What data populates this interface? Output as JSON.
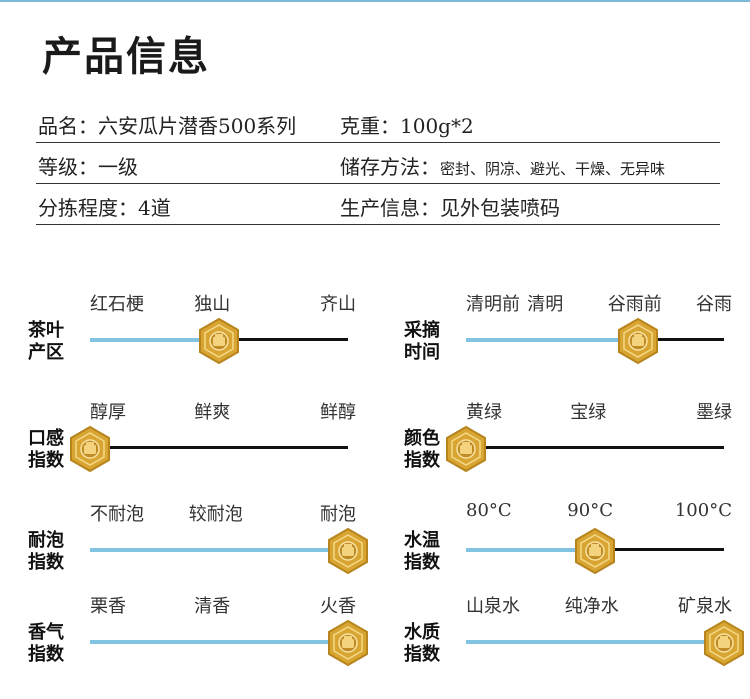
{
  "title": "产品信息",
  "info": [
    {
      "left": {
        "label": "品名：",
        "value": "六安瓜片潜香500系列"
      },
      "right": {
        "label": "克重：",
        "value": "100g*2",
        "small": false
      }
    },
    {
      "left": {
        "label": "等级：",
        "value": "一级"
      },
      "right": {
        "label": "储存方法：",
        "value": "密封、阴凉、避光、干燥、无异味",
        "small": true
      }
    },
    {
      "left": {
        "label": "分拣程度：",
        "value": "4道"
      },
      "right": {
        "label": "生产信息：",
        "value": "见外包装喷码",
        "small": false
      }
    }
  ],
  "metrics": [
    {
      "label": "茶叶\n产区",
      "options": [
        "红石梗",
        "独山",
        "齐山"
      ],
      "level": 0.5
    },
    {
      "label": "采摘\n时间",
      "options": [
        "清明前",
        "清明",
        "谷雨前",
        "谷雨"
      ],
      "level": 0.667
    },
    {
      "label": "口感\n指数",
      "options": [
        "醇厚",
        "鲜爽",
        "鲜醇"
      ],
      "level": 0.0
    },
    {
      "label": "颜色\n指数",
      "options": [
        "黄绿",
        "宝绿",
        "墨绿"
      ],
      "level": 0.0
    },
    {
      "label": "耐泡\n指数",
      "options": [
        "不耐泡",
        "较耐泡",
        "耐泡"
      ],
      "level": 1.0
    },
    {
      "label": "水温\n指数",
      "options": [
        "80°C",
        "90°C",
        "100°C"
      ],
      "level": 0.5
    },
    {
      "label": "香气\n指数",
      "options": [
        "栗香",
        "清香",
        "火香"
      ],
      "level": 1.0
    },
    {
      "label": "水质\n指数",
      "options": [
        "山泉水",
        "纯净水",
        "矿泉水"
      ],
      "level": 1.0
    }
  ],
  "colors": {
    "accent": "#82c3e2",
    "track": "#111111",
    "marker": "#d9a532"
  }
}
